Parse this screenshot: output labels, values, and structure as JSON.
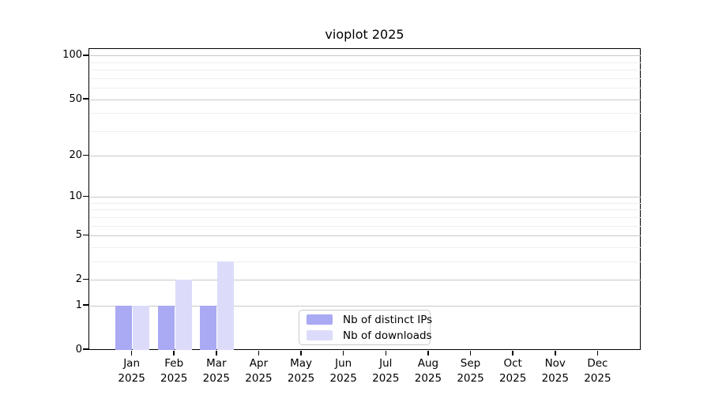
{
  "chart_data": {
    "type": "bar",
    "title": "vioplot 2025",
    "xlabel": "",
    "ylabel": "",
    "categories": [
      "Jan",
      "Feb",
      "Mar",
      "Apr",
      "May",
      "Jun",
      "Jul",
      "Aug",
      "Sep",
      "Oct",
      "Nov",
      "Dec"
    ],
    "category_year": "2025",
    "series": [
      {
        "name": "Nb of distinct IPs",
        "color": "#a9a9f4",
        "values": [
          1,
          1,
          1,
          0,
          0,
          0,
          0,
          0,
          0,
          0,
          0,
          0
        ]
      },
      {
        "name": "Nb of downloads",
        "color": "#dcdcfa",
        "values": [
          1,
          2,
          3,
          0,
          0,
          0,
          0,
          0,
          0,
          0,
          0,
          0
        ]
      }
    ],
    "y_axis": {
      "scale": "log1p",
      "tick_values": [
        0,
        1,
        2,
        5,
        10,
        20,
        50,
        100
      ],
      "tick_labels": [
        "0",
        "1",
        "2",
        "5",
        "10",
        "20",
        "50",
        "100"
      ],
      "minor_gridline_values": [
        1,
        2,
        3,
        4,
        5,
        6,
        7,
        8,
        9,
        10,
        20,
        30,
        40,
        50,
        60,
        70,
        80,
        90,
        100
      ],
      "top_value": 110.5,
      "ylim": [
        0,
        110.5
      ]
    },
    "grid": true,
    "legend_position": "lower center inside",
    "colors": {
      "major_grid": "#c9c9c9",
      "minor_grid": "#efefef",
      "axis": "#000000",
      "legend_border": "#c9c9c9",
      "background": "#ffffff"
    }
  }
}
